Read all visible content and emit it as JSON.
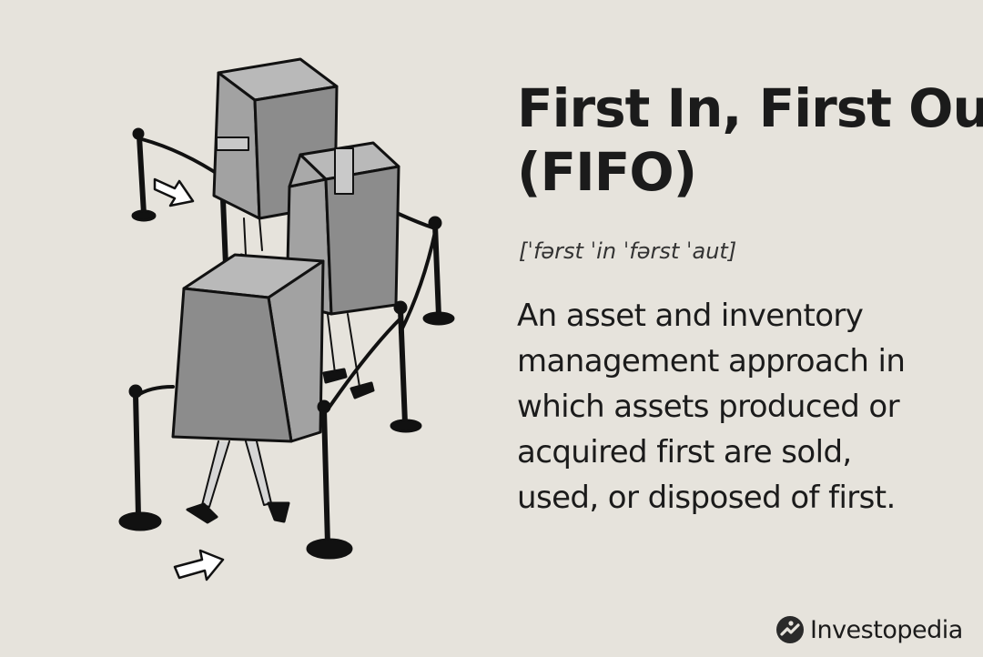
{
  "title": {
    "line1": "First In, First Out",
    "line2": "(FIFO)"
  },
  "pronunciation": "[ˈfərst ˈin ˈfərst ˈaut]",
  "definition": {
    "lines": [
      "An asset and inventory",
      "management approach in",
      "which assets produced or",
      "acquired first are sold,",
      "used, or disposed of first."
    ]
  },
  "brand": {
    "name": "Investopedia",
    "logo_icon": "investopedia-logo-icon"
  },
  "illustration": {
    "icon": "boxes-walking-in-queue-illustration"
  },
  "colors": {
    "background": "#e6e3dc",
    "text": "#1b1b1b",
    "box_fill": "#8c8c8c",
    "box_top": "#b4b4b4"
  }
}
